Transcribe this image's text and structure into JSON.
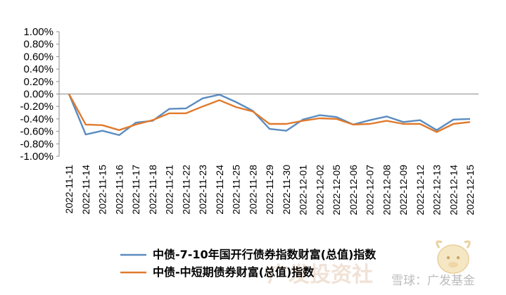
{
  "chart_data": {
    "type": "line",
    "title": "",
    "xlabel": "",
    "ylabel": "",
    "ylim": [
      -0.01,
      0.01
    ],
    "yticks": [
      "1.00%",
      "0.80%",
      "0.60%",
      "0.40%",
      "0.20%",
      "0.00%",
      "-0.20%",
      "-0.40%",
      "-0.60%",
      "-0.80%",
      "-1.00%"
    ],
    "categories": [
      "2022-11-11",
      "2022-11-14",
      "2022-11-15",
      "2022-11-16",
      "2022-11-17",
      "2022-11-18",
      "2022-11-21",
      "2022-11-22",
      "2022-11-23",
      "2022-11-24",
      "2022-11-25",
      "2022-11-28",
      "2022-11-29",
      "2022-11-30",
      "2022-12-01",
      "2022-12-02",
      "2022-12-05",
      "2022-12-06",
      "2022-12-07",
      "2022-12-08",
      "2022-12-09",
      "2022-12-12",
      "2022-12-13",
      "2022-12-14",
      "2022-12-15"
    ],
    "series": [
      {
        "name": "中债-7-10年国开行债券指数财富(总值)指数",
        "color": "#5b8cc0",
        "values": [
          0.0,
          -0.0065,
          -0.0059,
          -0.0066,
          -0.0046,
          -0.0043,
          -0.0024,
          -0.0023,
          -0.0007,
          -0.0001,
          -0.0013,
          -0.0027,
          -0.0056,
          -0.0059,
          -0.0041,
          -0.0034,
          -0.0037,
          -0.0049,
          -0.0042,
          -0.0036,
          -0.0045,
          -0.0042,
          -0.0058,
          -0.0041,
          -0.004
        ]
      },
      {
        "name": "中债-中短期债券财富(总值)指数",
        "color": "#e07a2d",
        "values": [
          0.0,
          -0.0049,
          -0.005,
          -0.0058,
          -0.0049,
          -0.0042,
          -0.0031,
          -0.0031,
          -0.002,
          -0.001,
          -0.0021,
          -0.0028,
          -0.0048,
          -0.0048,
          -0.0043,
          -0.0039,
          -0.004,
          -0.0049,
          -0.0048,
          -0.0043,
          -0.0048,
          -0.0048,
          -0.0061,
          -0.0048,
          -0.0045
        ]
      }
    ],
    "grid": false,
    "legend_position": "bottom"
  },
  "watermark": {
    "text": "雪球：广发基金",
    "big_text": "广发投资社"
  }
}
